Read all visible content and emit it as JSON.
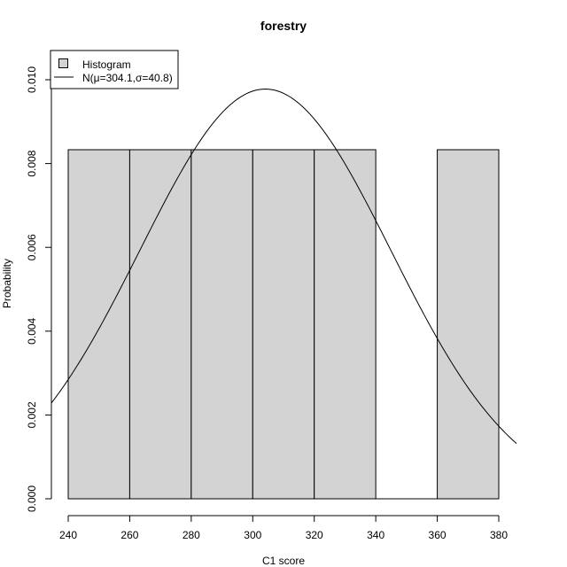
{
  "chart_data": {
    "type": "bar",
    "title": "forestry",
    "xlabel": "C1 score",
    "ylabel": "Probability",
    "xlim": [
      240,
      380
    ],
    "ylim": [
      0,
      0.01
    ],
    "x_ticks": [
      "240",
      "260",
      "280",
      "300",
      "320",
      "340",
      "360",
      "380"
    ],
    "y_ticks": [
      "0.000",
      "0.002",
      "0.004",
      "0.006",
      "0.008",
      "0.010"
    ],
    "bins": [
      {
        "from": 240,
        "to": 260,
        "value": 0.00833
      },
      {
        "from": 260,
        "to": 280,
        "value": 0.00833
      },
      {
        "from": 280,
        "to": 300,
        "value": 0.00833
      },
      {
        "from": 300,
        "to": 320,
        "value": 0.00833
      },
      {
        "from": 320,
        "to": 340,
        "value": 0.00833
      },
      {
        "from": 340,
        "to": 360,
        "value": 0
      },
      {
        "from": 360,
        "to": 380,
        "value": 0.00833
      }
    ],
    "bar_color": "#d3d3d3",
    "curve": {
      "mean": 304.1,
      "sd": 40.8,
      "color": "#000000"
    },
    "legend": {
      "position": "top-left",
      "items": [
        {
          "label": "Histogram",
          "kind": "box"
        },
        {
          "label": "N(μ=304.1,σ=40.8)",
          "kind": "line"
        }
      ]
    },
    "grid": false
  }
}
